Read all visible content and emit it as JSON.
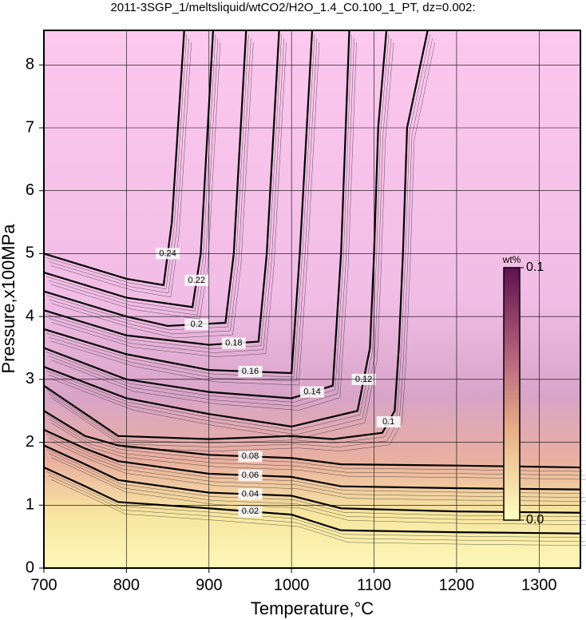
{
  "chart_data": {
    "type": "contour",
    "title": "2011-3SGP_1/meltsliquid/wtCO2/H2O_1.4_C0.100_1_PT, dz=0.002:",
    "xlabel": "Temperature,°C",
    "ylabel": "Pressure,x100MPa",
    "xlim": [
      700,
      1350
    ],
    "ylim": [
      0,
      8.55
    ],
    "xticks": [
      700,
      800,
      900,
      1000,
      1100,
      1200,
      1300
    ],
    "yticks": [
      0,
      1,
      2,
      3,
      4,
      5,
      6,
      7,
      8
    ],
    "grid": true,
    "colorbar": {
      "label": "wt%",
      "lim": [
        0,
        0.1
      ],
      "ticks": [
        {
          "value": 0,
          "label": "0.0"
        },
        0.1
      ]
    },
    "series": [
      {
        "level": 0.02,
        "color": "#000000",
        "x": [
          700,
          750,
          790,
          900,
          1000,
          1060,
          1200,
          1350
        ],
        "y": [
          1.6,
          1.3,
          1.05,
          0.95,
          0.85,
          0.6,
          0.57,
          0.55
        ]
      },
      {
        "level": 0.04,
        "color": "#000000",
        "x": [
          700,
          750,
          790,
          900,
          1000,
          1060,
          1200,
          1350
        ],
        "y": [
          1.95,
          1.65,
          1.4,
          1.2,
          1.15,
          0.95,
          0.9,
          0.88
        ]
      },
      {
        "level": 0.06,
        "color": "#000000",
        "x": [
          700,
          750,
          790,
          900,
          1000,
          1060,
          1200,
          1350
        ],
        "y": [
          2.2,
          1.9,
          1.7,
          1.5,
          1.45,
          1.3,
          1.27,
          1.25
        ]
      },
      {
        "level": 0.08,
        "color": "#000000",
        "x": [
          700,
          750,
          790,
          900,
          1000,
          1060,
          1200,
          1350
        ],
        "y": [
          2.5,
          2.1,
          1.95,
          1.8,
          1.75,
          1.65,
          1.63,
          1.6
        ]
      },
      {
        "level": 0.1,
        "color": "#000000",
        "x": [
          700,
          790,
          900,
          1000,
          1050,
          1110,
          1125,
          1130,
          1135,
          1140,
          1165
        ],
        "y": [
          2.9,
          2.1,
          2.05,
          2.1,
          2.05,
          2.15,
          2.5,
          3.5,
          5,
          7,
          8.55
        ]
      },
      {
        "level": 0.12,
        "color": "#000000",
        "x": [
          700,
          800,
          900,
          1000,
          1080,
          1095,
          1100,
          1105,
          1115
        ],
        "y": [
          3.2,
          2.7,
          2.45,
          2.25,
          2.5,
          3.5,
          5,
          7,
          8.55
        ]
      },
      {
        "level": 0.14,
        "color": "#000000",
        "x": [
          700,
          800,
          900,
          1000,
          1050,
          1060,
          1070
        ],
        "y": [
          3.5,
          3.0,
          2.8,
          2.7,
          2.9,
          5,
          8.55
        ]
      },
      {
        "level": 0.16,
        "color": "#000000",
        "x": [
          700,
          800,
          900,
          1000,
          1010,
          1025
        ],
        "y": [
          3.8,
          3.4,
          3.15,
          3.1,
          5,
          8.55
        ]
      },
      {
        "level": 0.18,
        "color": "#000000",
        "x": [
          700,
          800,
          900,
          960,
          970,
          985
        ],
        "y": [
          4.1,
          3.7,
          3.55,
          3.6,
          5,
          8.55
        ]
      },
      {
        "level": 0.2,
        "color": "#000000",
        "x": [
          700,
          800,
          850,
          920,
          930,
          945
        ],
        "y": [
          4.4,
          4.0,
          3.85,
          3.9,
          5,
          8.55
        ]
      },
      {
        "level": 0.22,
        "color": "#000000",
        "x": [
          700,
          800,
          880,
          890,
          905
        ],
        "y": [
          4.7,
          4.3,
          4.15,
          5,
          8.55
        ]
      },
      {
        "level": 0.24,
        "color": "#000000",
        "x": [
          700,
          800,
          845,
          855,
          870
        ],
        "y": [
          5.0,
          4.6,
          4.5,
          5.5,
          8.55
        ]
      }
    ]
  }
}
